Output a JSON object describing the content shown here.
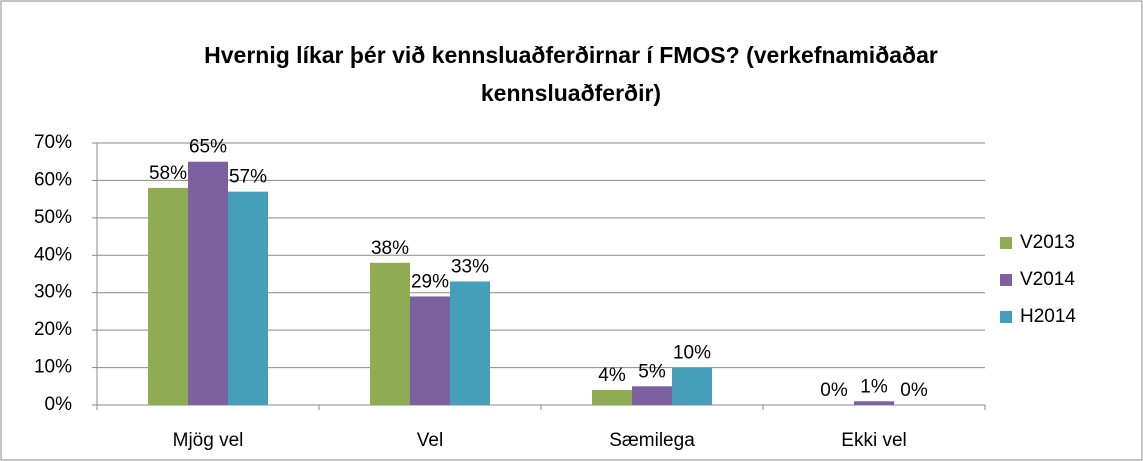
{
  "chart_data": {
    "type": "bar",
    "title_lines": [
      "Hvernig líkar þér við kennsluaðferðirnar í FMOS? (verkefnamiðaðar",
      "kennsluaðferðir)"
    ],
    "categories": [
      "Mjög vel",
      "Vel",
      "Sæmilega",
      "Ekki vel"
    ],
    "series": [
      {
        "name": "V2013",
        "color": "#8fac52",
        "values": [
          58,
          38,
          4,
          0
        ],
        "value_labels": [
          "58%",
          "38%",
          "4%",
          "0%"
        ]
      },
      {
        "name": "V2014",
        "color": "#7c60a0",
        "values": [
          65,
          29,
          5,
          1
        ],
        "value_labels": [
          "65%",
          "29%",
          "5%",
          "1%"
        ]
      },
      {
        "name": "H2014",
        "color": "#469fb8",
        "values": [
          57,
          33,
          10,
          0
        ],
        "value_labels": [
          "57%",
          "33%",
          "10%",
          "0%"
        ]
      }
    ],
    "ylim": [
      0,
      70
    ],
    "yticks": [
      {
        "value": 0,
        "label": "0%"
      },
      {
        "value": 10,
        "label": "10%"
      },
      {
        "value": 20,
        "label": "20%"
      },
      {
        "value": 30,
        "label": "30%"
      },
      {
        "value": 40,
        "label": "40%"
      },
      {
        "value": 50,
        "label": "50%"
      },
      {
        "value": 60,
        "label": "60%"
      },
      {
        "value": 70,
        "label": "70%"
      }
    ],
    "grid": true,
    "legend": "right"
  }
}
